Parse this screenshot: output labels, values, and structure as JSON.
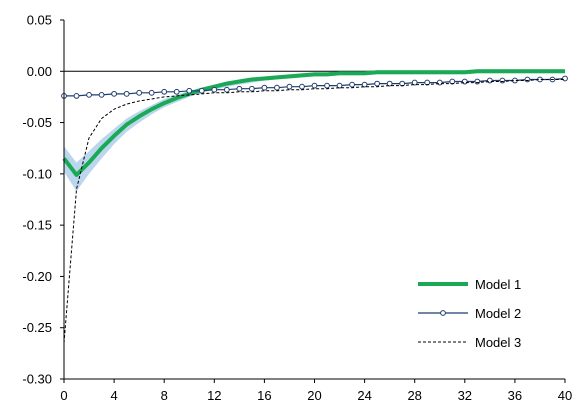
{
  "chart_data": {
    "type": "line",
    "title": "",
    "xlabel": "",
    "ylabel": "",
    "xlim": [
      0,
      40
    ],
    "ylim": [
      -0.3,
      0.05
    ],
    "xticks": [
      0,
      4,
      8,
      12,
      16,
      20,
      24,
      28,
      32,
      36,
      40
    ],
    "xtick_labels": [
      "0",
      "4",
      "8",
      "12",
      "16",
      "20",
      "24",
      "28",
      "32",
      "36",
      "40"
    ],
    "yticks": [
      0.05,
      0.0,
      -0.05,
      -0.1,
      -0.15,
      -0.2,
      -0.25,
      -0.3
    ],
    "ytick_labels": [
      "0.05",
      "0.00",
      "-0.05",
      "-0.10",
      "-0.15",
      "-0.20",
      "-0.25",
      "-0.30"
    ],
    "zero_line": true,
    "grid": false,
    "legend_position": "bottom-right",
    "x": [
      0,
      1,
      2,
      3,
      4,
      5,
      6,
      7,
      8,
      9,
      10,
      11,
      12,
      13,
      14,
      15,
      16,
      17,
      18,
      19,
      20,
      21,
      22,
      23,
      24,
      25,
      26,
      27,
      28,
      29,
      30,
      31,
      32,
      33,
      34,
      35,
      36,
      37,
      38,
      39,
      40
    ],
    "series": [
      {
        "name": "Model 1",
        "style": "thick-solid",
        "color": "#1aaa55",
        "values": [
          -0.085,
          -0.101,
          -0.089,
          -0.075,
          -0.063,
          -0.052,
          -0.044,
          -0.037,
          -0.031,
          -0.026,
          -0.022,
          -0.018,
          -0.015,
          -0.012,
          -0.01,
          -0.008,
          -0.007,
          -0.006,
          -0.005,
          -0.004,
          -0.003,
          -0.003,
          -0.002,
          -0.002,
          -0.002,
          -0.001,
          -0.001,
          -0.001,
          -0.001,
          -0.001,
          -0.001,
          -0.001,
          -0.001,
          0.0,
          0.0,
          0.0,
          0.0,
          0.0,
          0.0,
          0.0,
          0.0
        ],
        "band_lower": [
          -0.098,
          -0.117,
          -0.1,
          -0.085,
          -0.071,
          -0.059,
          -0.05,
          -0.042,
          -0.035,
          -0.03,
          -0.025,
          -0.021,
          -0.018,
          -0.015,
          -0.013,
          -0.011,
          -0.009,
          -0.008,
          -0.007,
          -0.006,
          -0.005,
          -0.005,
          -0.004,
          -0.004,
          -0.004,
          -0.003,
          -0.003,
          -0.003,
          -0.003,
          -0.003,
          -0.003,
          -0.003,
          -0.003,
          -0.002,
          -0.002,
          -0.002,
          -0.002,
          -0.002,
          -0.002,
          -0.002,
          -0.002
        ],
        "band_upper": [
          -0.073,
          -0.089,
          -0.078,
          -0.066,
          -0.056,
          -0.046,
          -0.039,
          -0.033,
          -0.027,
          -0.023,
          -0.019,
          -0.016,
          -0.013,
          -0.01,
          -0.008,
          -0.006,
          -0.005,
          -0.004,
          -0.003,
          -0.002,
          -0.001,
          -0.001,
          0.0,
          0.0,
          0.0,
          0.001,
          0.001,
          0.001,
          0.001,
          0.001,
          0.001,
          0.001,
          0.001,
          0.002,
          0.002,
          0.002,
          0.002,
          0.002,
          0.002,
          0.002,
          0.002
        ],
        "band_color": "#bcd6ee"
      },
      {
        "name": "Model 2",
        "style": "solid-circle-markers",
        "color": "#1f3c6e",
        "values": [
          -0.024,
          -0.024,
          -0.023,
          -0.023,
          -0.022,
          -0.022,
          -0.021,
          -0.021,
          -0.02,
          -0.02,
          -0.019,
          -0.019,
          -0.018,
          -0.018,
          -0.017,
          -0.017,
          -0.016,
          -0.016,
          -0.015,
          -0.015,
          -0.014,
          -0.014,
          -0.014,
          -0.013,
          -0.013,
          -0.012,
          -0.012,
          -0.012,
          -0.011,
          -0.011,
          -0.011,
          -0.01,
          -0.01,
          -0.01,
          -0.009,
          -0.009,
          -0.009,
          -0.008,
          -0.008,
          -0.008,
          -0.007
        ]
      },
      {
        "name": "Model 3",
        "style": "dashed",
        "color": "#000000",
        "values": [
          -0.265,
          -0.115,
          -0.065,
          -0.046,
          -0.037,
          -0.032,
          -0.029,
          -0.027,
          -0.025,
          -0.024,
          -0.023,
          -0.022,
          -0.021,
          -0.021,
          -0.02,
          -0.02,
          -0.019,
          -0.019,
          -0.018,
          -0.018,
          -0.017,
          -0.017,
          -0.016,
          -0.016,
          -0.015,
          -0.015,
          -0.014,
          -0.014,
          -0.013,
          -0.013,
          -0.012,
          -0.012,
          -0.011,
          -0.011,
          -0.01,
          -0.01,
          -0.009,
          -0.009,
          -0.008,
          -0.008,
          -0.008
        ]
      }
    ]
  }
}
